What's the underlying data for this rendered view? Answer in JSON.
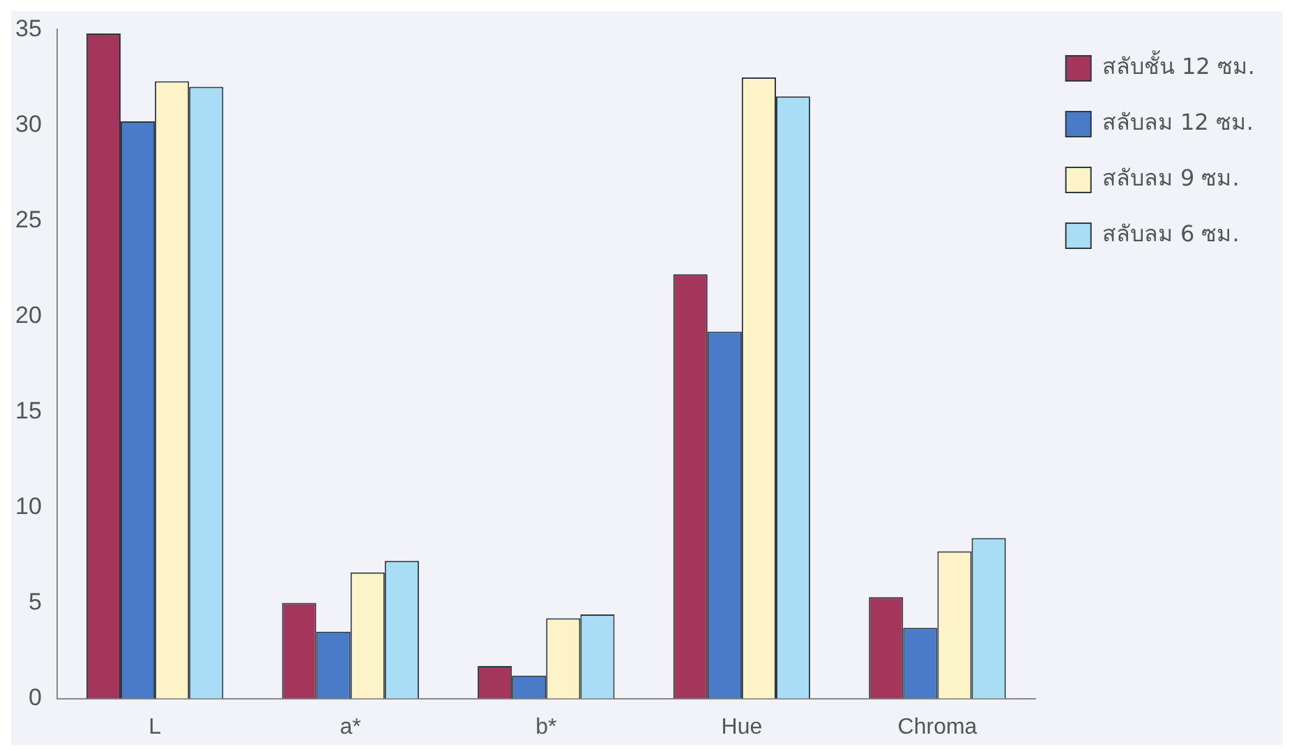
{
  "chart_data": {
    "type": "bar",
    "categories": [
      "L",
      "a*",
      "b*",
      "Hue",
      "Chroma"
    ],
    "series": [
      {
        "name": "สลับชั้น 12 ซม.",
        "color": "#a3365a",
        "values": [
          34.8,
          5.0,
          1.7,
          22.2,
          5.3
        ]
      },
      {
        "name": "สลับลม 12 ซม.",
        "color": "#4a7bc8",
        "values": [
          30.2,
          3.5,
          1.2,
          19.2,
          3.7
        ]
      },
      {
        "name": "สลับลม 9 ซม.",
        "color": "#fdf3c8",
        "values": [
          32.3,
          6.6,
          4.2,
          32.5,
          7.7
        ]
      },
      {
        "name": "สลับลม 6 ซม.",
        "color": "#a9dcf5",
        "values": [
          32.0,
          7.2,
          4.4,
          31.5,
          8.4
        ]
      }
    ],
    "ylim": [
      0,
      35
    ],
    "yticks": [
      0,
      5,
      10,
      15,
      20,
      25,
      30,
      35
    ],
    "grid": false,
    "legend": "top right"
  }
}
